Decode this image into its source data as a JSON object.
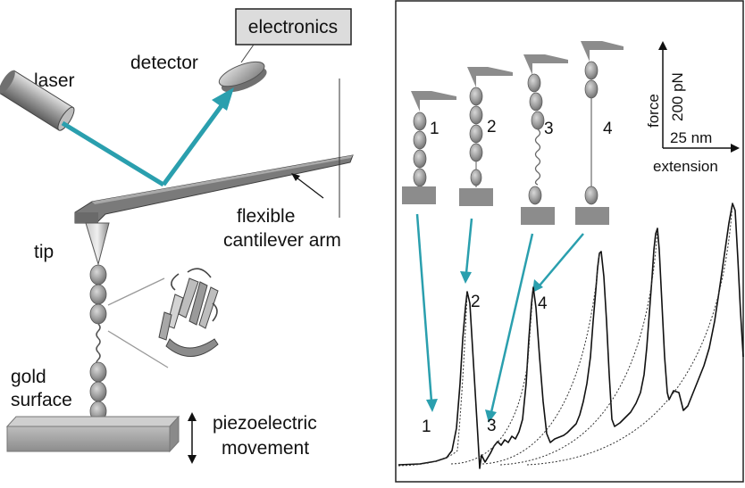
{
  "left_panel": {
    "electronics": "electronics",
    "detector": "detector",
    "laser": "laser",
    "cantilever_line1": "flexible",
    "cantilever_line2": "cantilever arm",
    "tip": "tip",
    "gold_line1": "gold",
    "gold_line2": "surface",
    "piezo_line1": "piezoelectric",
    "piezo_line2": "movement"
  },
  "right_panel": {
    "stage_labels": [
      "1",
      "2",
      "3",
      "4"
    ],
    "peak_labels": [
      "1",
      "2",
      "3",
      "4"
    ],
    "scale_force": "200 pN",
    "scale_extension": "25 nm",
    "axis_force": "force",
    "axis_extension": "extension"
  },
  "colors": {
    "beam": "#2a9fae",
    "cantilever": "#6e6e6e",
    "bead": "#9a9a9a",
    "surface": "#a6a6a6",
    "trace": "#111111"
  },
  "icons": [
    "laser-body",
    "detector-dish",
    "protein-ribbon-icon",
    "double-arrow-icon"
  ]
}
